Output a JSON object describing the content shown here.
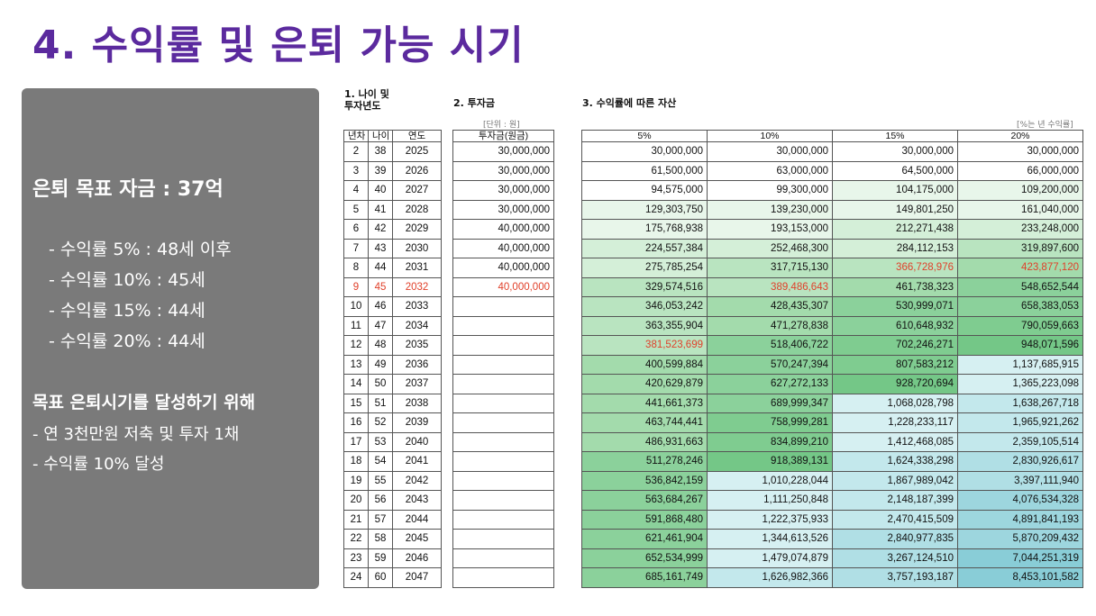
{
  "title": "4. 수익률 및 은퇴 가능 시기",
  "panel": {
    "goal": "은퇴 목표 자금 : 37억",
    "rates": [
      "- 수익률  5% : 48세 이후",
      "- 수익률 10% : 45세",
      "- 수익률 15% : 44세",
      "- 수익률 20% : 44세"
    ],
    "subtitle": "목표 은퇴시기를 달성하기 위해",
    "actions": [
      "- 연 3천만원 저축 및 투자 1채",
      "- 수익률 10% 달성"
    ]
  },
  "section1": {
    "title_line1": "1. 나이 및",
    "title_line2": "투자년도",
    "headers": [
      "년차",
      "나이",
      "연도"
    ]
  },
  "section2": {
    "title": "2. 투자금",
    "unit": "[단위 : 원]",
    "header": "투자금(원금)"
  },
  "section3": {
    "title": "3. 수익률에 따른 자산",
    "unit": "[%는 년 수익률]",
    "headers": [
      "5%",
      "10%",
      "15%",
      "20%"
    ]
  },
  "highlight_color": "#e0402a",
  "highlight_year_index": 7,
  "rows": [
    {
      "n": "2",
      "age": "38",
      "year": "2025",
      "inv": "30,000,000",
      "v": [
        "30,000,000",
        "30,000,000",
        "30,000,000",
        "30,000,000"
      ]
    },
    {
      "n": "3",
      "age": "39",
      "year": "2026",
      "inv": "30,000,000",
      "v": [
        "61,500,000",
        "63,000,000",
        "64,500,000",
        "66,000,000"
      ]
    },
    {
      "n": "4",
      "age": "40",
      "year": "2027",
      "inv": "30,000,000",
      "v": [
        "94,575,000",
        "99,300,000",
        "104,175,000",
        "109,200,000"
      ]
    },
    {
      "n": "5",
      "age": "41",
      "year": "2028",
      "inv": "30,000,000",
      "v": [
        "129,303,750",
        "139,230,000",
        "149,801,250",
        "161,040,000"
      ]
    },
    {
      "n": "6",
      "age": "42",
      "year": "2029",
      "inv": "40,000,000",
      "v": [
        "175,768,938",
        "193,153,000",
        "212,271,438",
        "233,248,000"
      ]
    },
    {
      "n": "7",
      "age": "43",
      "year": "2030",
      "inv": "40,000,000",
      "v": [
        "224,557,384",
        "252,468,300",
        "284,112,153",
        "319,897,600"
      ]
    },
    {
      "n": "8",
      "age": "44",
      "year": "2031",
      "inv": "40,000,000",
      "v": [
        "275,785,254",
        "317,715,130",
        "366,728,976",
        "423,877,120"
      ]
    },
    {
      "n": "9",
      "age": "45",
      "year": "2032",
      "inv": "40,000,000",
      "v": [
        "329,574,516",
        "389,486,643",
        "461,738,323",
        "548,652,544"
      ]
    },
    {
      "n": "10",
      "age": "46",
      "year": "2033",
      "inv": "",
      "v": [
        "346,053,242",
        "428,435,307",
        "530,999,071",
        "658,383,053"
      ]
    },
    {
      "n": "11",
      "age": "47",
      "year": "2034",
      "inv": "",
      "v": [
        "363,355,904",
        "471,278,838",
        "610,648,932",
        "790,059,663"
      ]
    },
    {
      "n": "12",
      "age": "48",
      "year": "2035",
      "inv": "",
      "v": [
        "381,523,699",
        "518,406,722",
        "702,246,271",
        "948,071,596"
      ]
    },
    {
      "n": "13",
      "age": "49",
      "year": "2036",
      "inv": "",
      "v": [
        "400,599,884",
        "570,247,394",
        "807,583,212",
        "1,137,685,915"
      ]
    },
    {
      "n": "14",
      "age": "50",
      "year": "2037",
      "inv": "",
      "v": [
        "420,629,879",
        "627,272,133",
        "928,720,694",
        "1,365,223,098"
      ]
    },
    {
      "n": "15",
      "age": "51",
      "year": "2038",
      "inv": "",
      "v": [
        "441,661,373",
        "689,999,347",
        "1,068,028,798",
        "1,638,267,718"
      ]
    },
    {
      "n": "16",
      "age": "52",
      "year": "2039",
      "inv": "",
      "v": [
        "463,744,441",
        "758,999,281",
        "1,228,233,117",
        "1,965,921,262"
      ]
    },
    {
      "n": "17",
      "age": "53",
      "year": "2040",
      "inv": "",
      "v": [
        "486,931,663",
        "834,899,210",
        "1,412,468,085",
        "2,359,105,514"
      ]
    },
    {
      "n": "18",
      "age": "54",
      "year": "2041",
      "inv": "",
      "v": [
        "511,278,246",
        "918,389,131",
        "1,624,338,298",
        "2,830,926,617"
      ]
    },
    {
      "n": "19",
      "age": "55",
      "year": "2042",
      "inv": "",
      "v": [
        "536,842,159",
        "1,010,228,044",
        "1,867,989,042",
        "3,397,111,940"
      ]
    },
    {
      "n": "20",
      "age": "56",
      "year": "2043",
      "inv": "",
      "v": [
        "563,684,267",
        "1,111,250,848",
        "2,148,187,399",
        "4,076,534,328"
      ]
    },
    {
      "n": "21",
      "age": "57",
      "year": "2044",
      "inv": "",
      "v": [
        "591,868,480",
        "1,222,375,933",
        "2,470,415,509",
        "4,891,841,193"
      ]
    },
    {
      "n": "22",
      "age": "58",
      "year": "2045",
      "inv": "",
      "v": [
        "621,461,904",
        "1,344,613,526",
        "2,840,977,835",
        "5,870,209,432"
      ]
    },
    {
      "n": "23",
      "age": "59",
      "year": "2046",
      "inv": "",
      "v": [
        "652,534,999",
        "1,479,074,879",
        "3,267,124,510",
        "7,044,251,319"
      ]
    },
    {
      "n": "24",
      "age": "60",
      "year": "2047",
      "inv": "",
      "v": [
        "685,161,749",
        "1,626,982,366",
        "3,757,193,187",
        "8,453,101,582"
      ]
    }
  ],
  "red_cells": [
    [
      6,
      2
    ],
    [
      6,
      3
    ],
    [
      7,
      1
    ],
    [
      10,
      0
    ]
  ]
}
